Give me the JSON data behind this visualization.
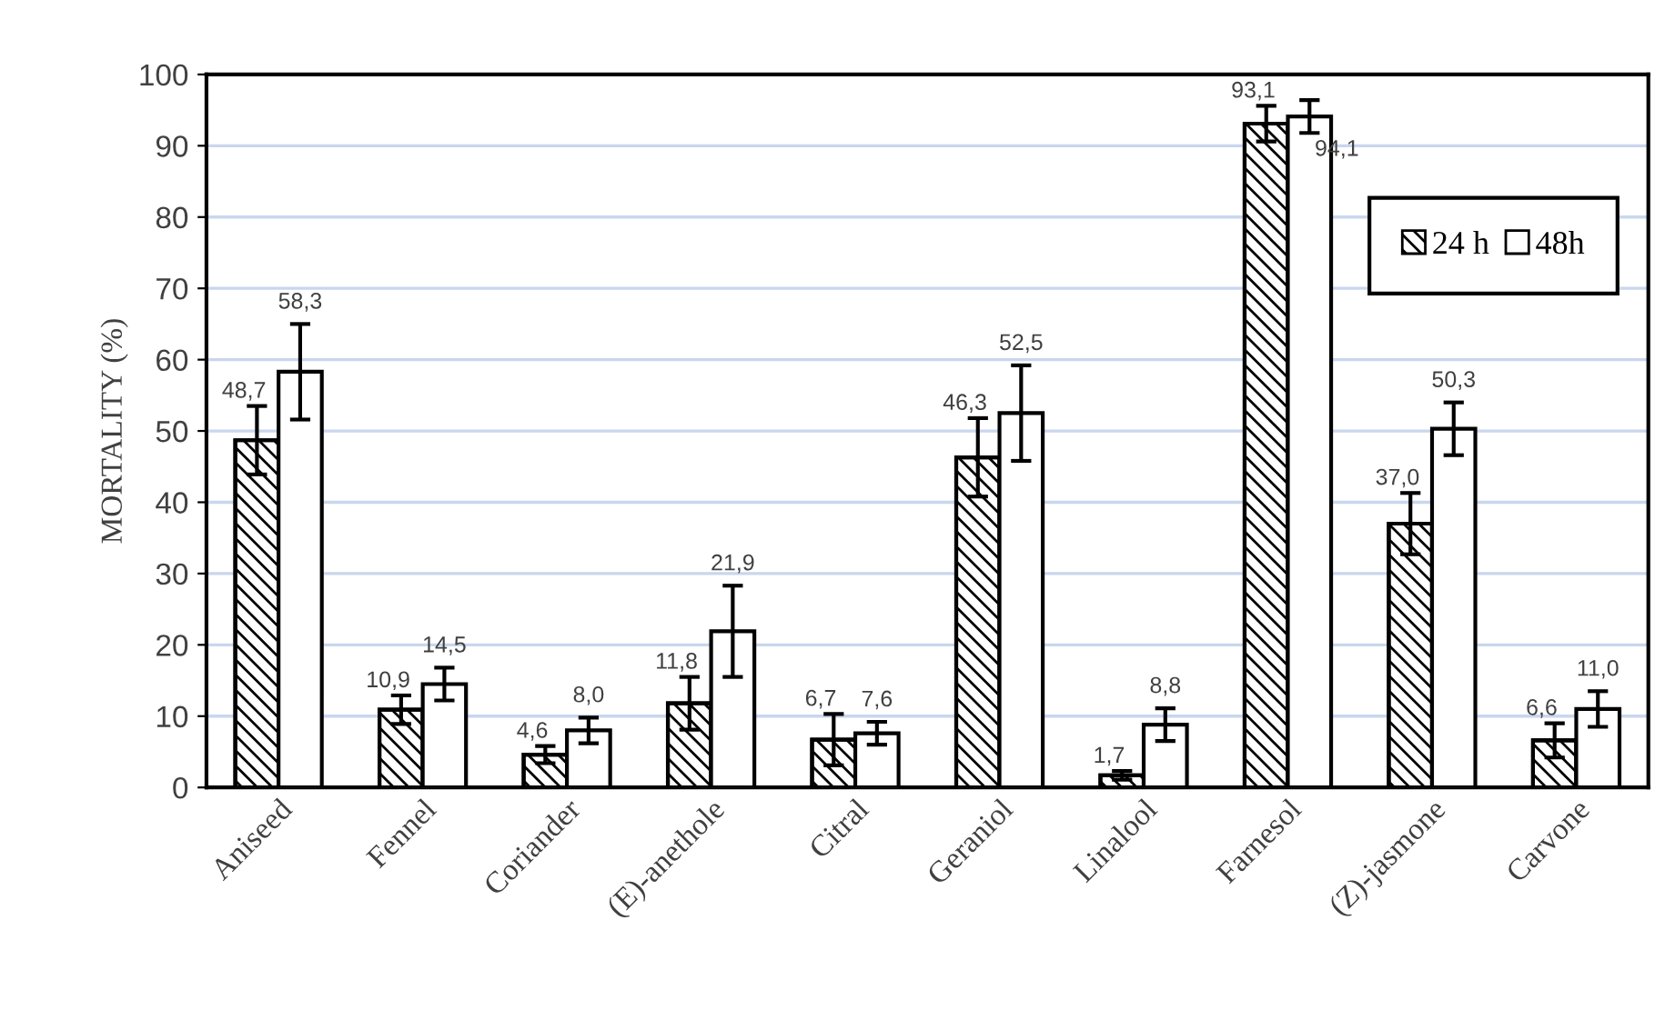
{
  "chart_data": {
    "type": "bar",
    "ylabel": "MORTALITY (%)",
    "categories": [
      "Aniseed",
      "Fennel",
      "Coriander",
      "(E)-anethole",
      "Citral",
      "Geraniol",
      "Linalool",
      "Farnesol",
      "(Z)-jasmone",
      "Carvone"
    ],
    "series": [
      {
        "name": "24 h",
        "color": "#000000",
        "values": [
          48.7,
          10.9,
          4.6,
          11.8,
          6.7,
          46.3,
          1.7,
          93.1,
          37.0,
          6.6
        ],
        "errors": [
          4.8,
          2.0,
          1.2,
          3.7,
          3.6,
          5.5,
          0.6,
          2.5,
          4.3,
          2.4
        ],
        "value_labels": [
          "48,7",
          "10,9",
          "4,6",
          "11,8",
          "6,7",
          "46,3",
          "1,7",
          "93,1",
          "37,0",
          "6,6"
        ]
      },
      {
        "name": "48h",
        "color": "#ffffff",
        "values": [
          58.3,
          14.5,
          8.0,
          21.9,
          7.6,
          52.5,
          8.8,
          94.1,
          50.3,
          11.0
        ],
        "errors": [
          6.7,
          2.3,
          1.8,
          6.4,
          1.6,
          6.7,
          2.3,
          2.3,
          3.7,
          2.5
        ],
        "value_labels": [
          "58,3",
          "14,5",
          "8,0",
          "21,9",
          "7,6",
          "52,5",
          "8,8",
          "94,1",
          "50,3",
          "11,0"
        ]
      }
    ],
    "ylim": [
      0,
      100
    ],
    "yticks": [
      0,
      10,
      20,
      30,
      40,
      50,
      60,
      70,
      80,
      90,
      100
    ],
    "grid": "y",
    "legend": "top right"
  }
}
